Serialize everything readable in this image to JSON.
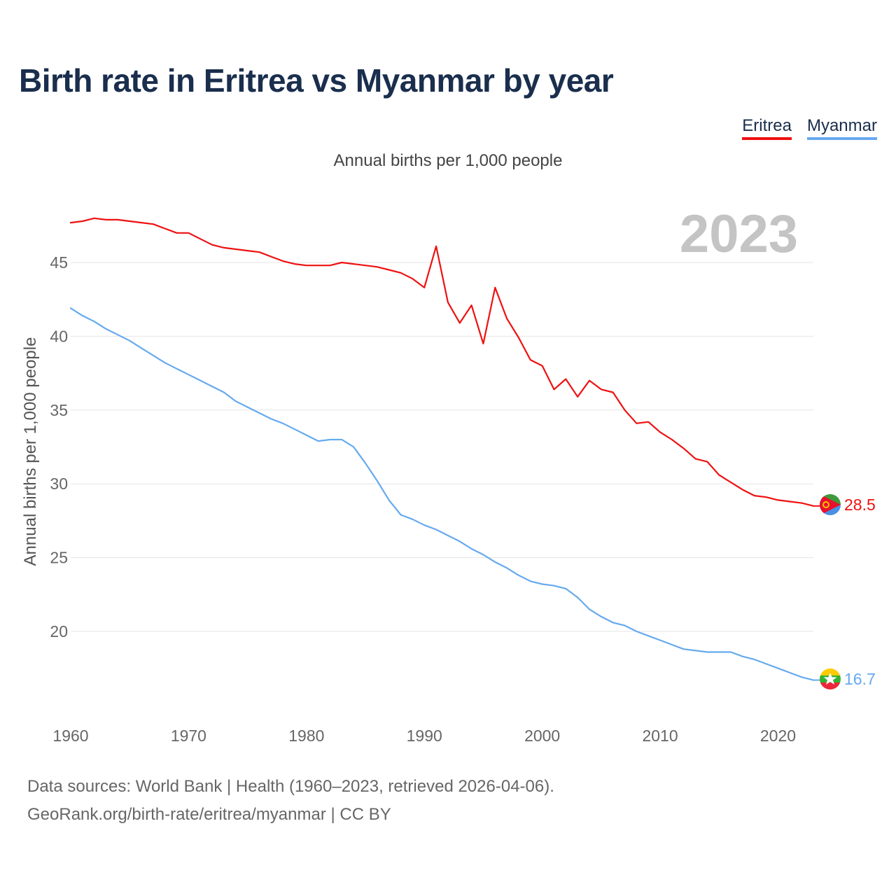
{
  "header": {
    "title": "Birth rate in Eritrea vs Myanmar by year",
    "subtitle": "Annual births per 1,000 people"
  },
  "footer": {
    "source_line": "Data sources: World Bank | Health (1960–2023, retrieved 2026-04-06).",
    "credit_line": "GeoRank.org/birth-rate/eritrea/myanmar | CC BY"
  },
  "chart_data": {
    "type": "line",
    "title": "Birth rate in Eritrea vs Myanmar by year",
    "subtitle": "Annual births per 1,000 people",
    "xlabel": "",
    "ylabel": "Annual births per 1,000 people",
    "year_label": "2023",
    "xlim": [
      1960,
      2023
    ],
    "ylim": [
      15,
      48.5
    ],
    "x_ticks": [
      1960,
      1970,
      1980,
      1990,
      2000,
      2010,
      2020
    ],
    "y_ticks": [
      20,
      25,
      30,
      35,
      40,
      45
    ],
    "grid": true,
    "legend_position": "top-right",
    "x": [
      1960,
      1961,
      1962,
      1963,
      1964,
      1965,
      1966,
      1967,
      1968,
      1969,
      1970,
      1971,
      1972,
      1973,
      1974,
      1975,
      1976,
      1977,
      1978,
      1979,
      1980,
      1981,
      1982,
      1983,
      1984,
      1985,
      1986,
      1987,
      1988,
      1989,
      1990,
      1991,
      1992,
      1993,
      1994,
      1995,
      1996,
      1997,
      1998,
      1999,
      2000,
      2001,
      2002,
      2003,
      2004,
      2005,
      2006,
      2007,
      2008,
      2009,
      2010,
      2011,
      2012,
      2013,
      2014,
      2015,
      2016,
      2017,
      2018,
      2019,
      2020,
      2021,
      2022,
      2023
    ],
    "series": [
      {
        "name": "Eritrea",
        "color": "#ee1111",
        "end_label": "28.5",
        "values": [
          47.7,
          47.8,
          48.0,
          47.9,
          47.9,
          47.8,
          47.7,
          47.6,
          47.3,
          47.0,
          47.0,
          46.6,
          46.2,
          46.0,
          45.9,
          45.8,
          45.7,
          45.4,
          45.1,
          44.9,
          44.8,
          44.8,
          44.8,
          45.0,
          44.9,
          44.8,
          44.7,
          44.5,
          44.3,
          43.9,
          43.3,
          46.1,
          42.3,
          40.9,
          42.1,
          39.5,
          43.3,
          41.2,
          39.9,
          38.4,
          38.0,
          36.4,
          37.1,
          35.9,
          37.0,
          36.4,
          36.2,
          35.0,
          34.1,
          34.2,
          33.5,
          33.0,
          32.4,
          31.7,
          31.5,
          30.6,
          30.1,
          29.6,
          29.2,
          29.1,
          28.9,
          28.8,
          28.7,
          28.5
        ]
      },
      {
        "name": "Myanmar",
        "color": "#66aaee",
        "end_label": "16.7",
        "values": [
          41.9,
          41.4,
          41.0,
          40.5,
          40.1,
          39.7,
          39.2,
          38.7,
          38.2,
          37.8,
          37.4,
          37.0,
          36.6,
          36.2,
          35.6,
          35.2,
          34.8,
          34.4,
          34.1,
          33.7,
          33.3,
          32.9,
          33.0,
          33.0,
          32.5,
          31.4,
          30.2,
          28.9,
          27.9,
          27.6,
          27.2,
          26.9,
          26.5,
          26.1,
          25.6,
          25.2,
          24.7,
          24.3,
          23.8,
          23.4,
          23.2,
          23.1,
          22.9,
          22.3,
          21.5,
          21.0,
          20.6,
          20.4,
          20.0,
          19.7,
          19.4,
          19.1,
          18.8,
          18.7,
          18.6,
          18.6,
          18.6,
          18.3,
          18.1,
          17.8,
          17.5,
          17.2,
          16.9,
          16.7
        ]
      }
    ]
  }
}
